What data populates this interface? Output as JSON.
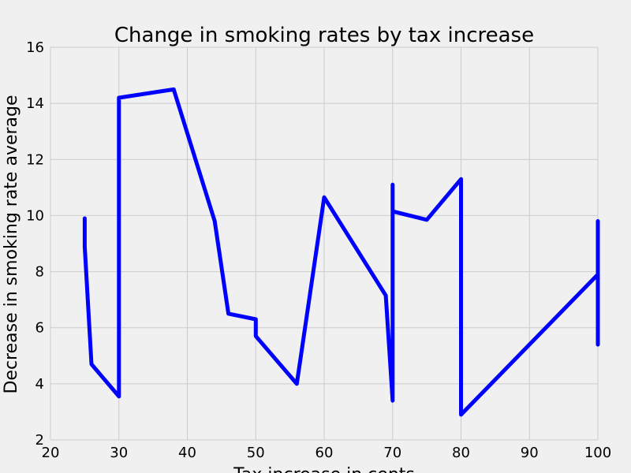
{
  "chart_data": {
    "type": "line",
    "title": "Change in smoking rates by tax increase",
    "xlabel": "Tax increase in cents",
    "ylabel": "Decrease in smoking rate average",
    "xlim": [
      20,
      100
    ],
    "ylim": [
      2,
      16
    ],
    "x_ticks": [
      20,
      30,
      40,
      50,
      60,
      70,
      80,
      90,
      100
    ],
    "y_ticks": [
      2,
      4,
      6,
      8,
      10,
      12,
      14,
      16
    ],
    "x_tick_labels": [
      "20",
      "30",
      "40",
      "50",
      "60",
      "70",
      "80",
      "90",
      "100"
    ],
    "y_tick_labels": [
      "2",
      "4",
      "6",
      "8",
      "10",
      "12",
      "14",
      "16"
    ],
    "grid": true,
    "line_color": "#0000ff",
    "background_color": "#f0f0f0",
    "series": [
      {
        "x": [
          25,
          25,
          25,
          26,
          30,
          30,
          38,
          44,
          46,
          50,
          50,
          56,
          60,
          69,
          70,
          70,
          70,
          75,
          80,
          80,
          100,
          100,
          100
        ],
        "y": [
          8.9,
          9.9,
          8.9,
          4.7,
          3.55,
          14.2,
          14.5,
          9.8,
          6.5,
          6.3,
          5.7,
          4.0,
          10.65,
          7.15,
          3.4,
          11.1,
          10.15,
          9.85,
          11.3,
          2.9,
          7.9,
          5.4,
          9.8
        ]
      }
    ]
  }
}
